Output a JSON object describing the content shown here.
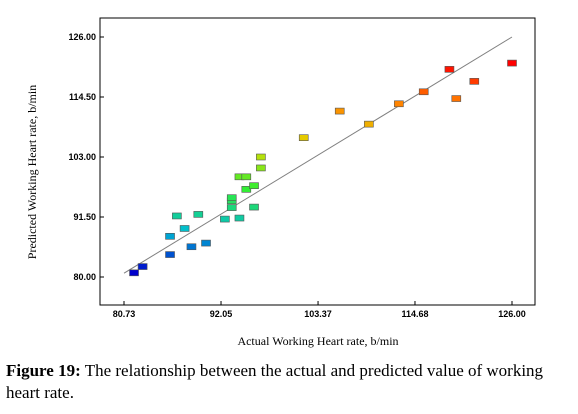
{
  "caption": {
    "label": "Figure 19:",
    "text": " The relationship between the actual and predicted value of working heart rate."
  },
  "chart_data": {
    "type": "scatter",
    "xlabel": "Actual Working Heart rate, b/min",
    "ylabel": "Predicted Working Heart rate, b/min",
    "xlim": [
      80.73,
      126.0
    ],
    "ylim": [
      80.0,
      126.0
    ],
    "x_ticks": [
      "80.73",
      "92.05",
      "103.37",
      "114.68",
      "126.00"
    ],
    "y_ticks": [
      "80.00",
      "91.50",
      "103.00",
      "114.50",
      "126.00"
    ],
    "grid": false,
    "legend": "none",
    "reference_line": {
      "x": [
        80.73,
        126.0
      ],
      "y": [
        80.73,
        126.0
      ]
    },
    "point_colormap": [
      "#0000cc",
      "#00bcd4",
      "#33ee33",
      "#dddd00",
      "#ff8800",
      "#ff0000"
    ],
    "points": [
      {
        "x": 81.9,
        "y": 80.8
      },
      {
        "x": 82.9,
        "y": 82.0
      },
      {
        "x": 86.1,
        "y": 84.3
      },
      {
        "x": 86.1,
        "y": 87.8
      },
      {
        "x": 86.9,
        "y": 91.7
      },
      {
        "x": 87.8,
        "y": 89.3
      },
      {
        "x": 88.6,
        "y": 85.8
      },
      {
        "x": 89.4,
        "y": 92.0
      },
      {
        "x": 90.3,
        "y": 86.5
      },
      {
        "x": 92.5,
        "y": 91.1
      },
      {
        "x": 93.3,
        "y": 93.3
      },
      {
        "x": 93.3,
        "y": 94.6
      },
      {
        "x": 93.3,
        "y": 95.2
      },
      {
        "x": 94.2,
        "y": 91.3
      },
      {
        "x": 94.2,
        "y": 99.2
      },
      {
        "x": 95.0,
        "y": 96.8
      },
      {
        "x": 95.0,
        "y": 99.2
      },
      {
        "x": 95.9,
        "y": 97.5
      },
      {
        "x": 95.9,
        "y": 93.4
      },
      {
        "x": 96.7,
        "y": 100.9
      },
      {
        "x": 96.7,
        "y": 103.0
      },
      {
        "x": 101.7,
        "y": 106.7
      },
      {
        "x": 105.9,
        "y": 111.8
      },
      {
        "x": 109.3,
        "y": 109.3
      },
      {
        "x": 112.8,
        "y": 113.2
      },
      {
        "x": 115.7,
        "y": 115.5
      },
      {
        "x": 118.7,
        "y": 119.8
      },
      {
        "x": 119.5,
        "y": 114.2
      },
      {
        "x": 121.6,
        "y": 117.5
      },
      {
        "x": 126.0,
        "y": 121.0
      }
    ]
  }
}
